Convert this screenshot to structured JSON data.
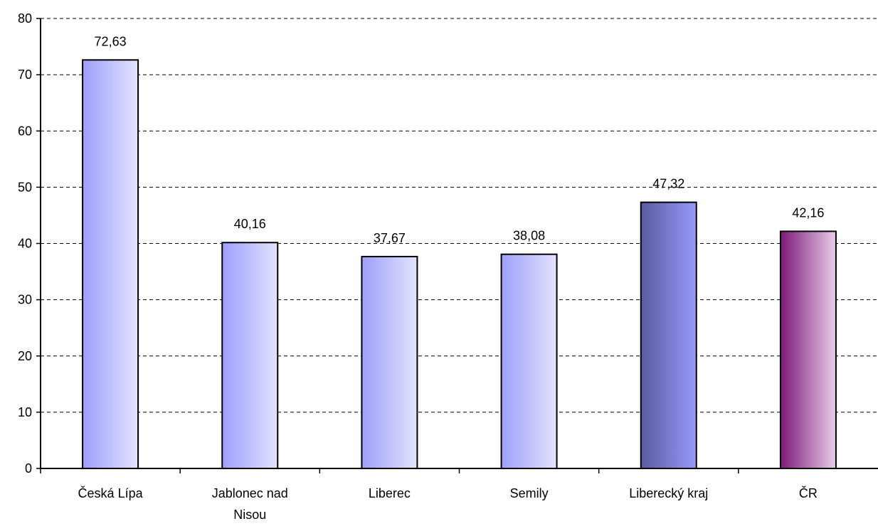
{
  "chart_data": {
    "type": "bar",
    "categories": [
      [
        "Česká Lípa"
      ],
      [
        "Jablonec nad",
        "Nisou"
      ],
      [
        "Liberec"
      ],
      [
        "Semily"
      ],
      [
        "Liberecký kraj"
      ],
      [
        "ČR"
      ]
    ],
    "values": [
      72.63,
      40.16,
      37.67,
      38.08,
      47.32,
      42.16
    ],
    "value_labels": [
      "72,63",
      "40,16",
      "37,67",
      "38,08",
      "47,32",
      "42,16"
    ],
    "y_ticks": [
      "0",
      "10",
      "20",
      "30",
      "40",
      "50",
      "60",
      "70",
      "80"
    ],
    "ylim": [
      0,
      80
    ],
    "ytick_step": 10,
    "grid": "horizontal dashed",
    "title": "",
    "xlabel": "",
    "ylabel": "",
    "bar_colors": [
      [
        "#9d9ffb",
        "#e3e3fd"
      ],
      [
        "#9d9ffb",
        "#e3e3fd"
      ],
      [
        "#9d9ffb",
        "#e3e3fd"
      ],
      [
        "#9d9ffb",
        "#e3e3fd"
      ],
      [
        "#5a5a9e",
        "#9999ff"
      ],
      [
        "#7d1a78",
        "#eaccea"
      ]
    ]
  }
}
